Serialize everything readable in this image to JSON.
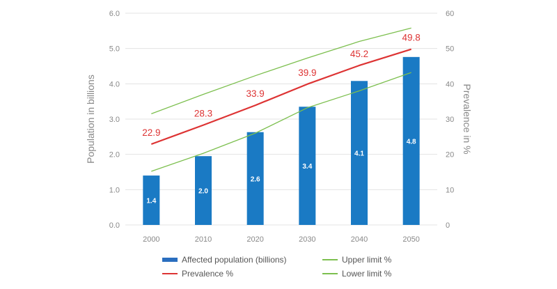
{
  "chart_data": {
    "type": "bar",
    "categories": [
      "2000",
      "2010",
      "2020",
      "2030",
      "2040",
      "2050"
    ],
    "series": [
      {
        "name": "Affected population (billions)",
        "kind": "bar",
        "axis": "left",
        "color": "#1a7ac4",
        "values": [
          1.4,
          1.95,
          2.63,
          3.35,
          4.08,
          4.76
        ],
        "labels": [
          "1.4",
          "2.0",
          "2.6",
          "3.4",
          "4.1",
          "4.8"
        ]
      },
      {
        "name": "Prevalence %",
        "kind": "line",
        "axis": "right",
        "color": "#dd3333",
        "values": [
          22.9,
          28.3,
          33.9,
          39.9,
          45.2,
          49.8
        ],
        "labels": [
          "22.9",
          "28.3",
          "33.9",
          "39.9",
          "45.2",
          "49.8"
        ]
      },
      {
        "name": "Upper limit %",
        "kind": "line",
        "axis": "right",
        "color": "#7cbf4e",
        "values": [
          31.5,
          37,
          42.3,
          47.3,
          52,
          55.8
        ]
      },
      {
        "name": "Lower limit %",
        "kind": "line",
        "axis": "right",
        "color": "#7cbf4e",
        "values": [
          15.2,
          20.3,
          26,
          33.2,
          38,
          43.2
        ]
      }
    ],
    "y_left": {
      "label": "Population in billions",
      "range": [
        0,
        6
      ],
      "ticks": [
        "0.0",
        "1.0",
        "2.0",
        "3.0",
        "4.0",
        "5.0",
        "6.0"
      ]
    },
    "y_right": {
      "label": "Prevalence in %",
      "range": [
        0,
        60
      ],
      "ticks": [
        "0",
        "10",
        "20",
        "30",
        "40",
        "50",
        "60"
      ]
    },
    "grid": true,
    "legend": [
      {
        "label": "Affected population (billions)",
        "swatch": "bar",
        "color": "#2a6ebf"
      },
      {
        "label": "Upper limit %",
        "swatch": "line",
        "color": "#7cbf4e"
      },
      {
        "label": "Prevalence %",
        "swatch": "line",
        "color": "#dd3333"
      },
      {
        "label": "Lower limit %",
        "swatch": "line",
        "color": "#7cbf4e"
      }
    ]
  }
}
